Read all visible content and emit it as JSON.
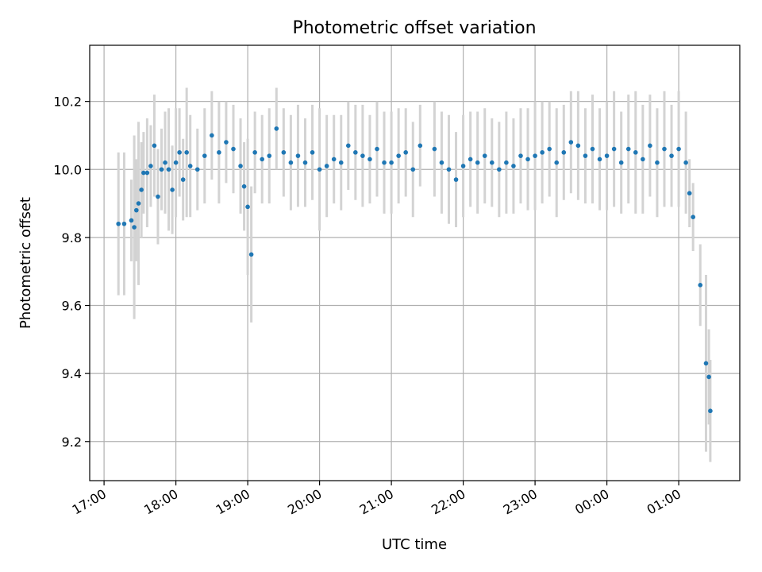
{
  "chart_data": {
    "type": "scatter",
    "title": "Photometric offset variation",
    "xlabel": "UTC time",
    "ylabel": "Photometric offset",
    "x_ticks": [
      "17:00",
      "18:00",
      "19:00",
      "20:00",
      "21:00",
      "22:00",
      "23:00",
      "00:00",
      "01:00"
    ],
    "y_ticks": [
      "9.2",
      "9.4",
      "9.6",
      "9.8",
      "10.0",
      "10.2"
    ],
    "xlim_hours": [
      16.8,
      25.85
    ],
    "ylim": [
      9.085,
      10.365
    ],
    "grid": true,
    "colors": {
      "point": "#1f77b4",
      "errorbar": "#d3d3d3"
    },
    "series": [
      {
        "x_hours": [
          17.2,
          17.28,
          17.38,
          17.42,
          17.45,
          17.48,
          17.52,
          17.55,
          17.6,
          17.65,
          17.7,
          17.75,
          17.8,
          17.85,
          17.9,
          17.95,
          18.0,
          18.05,
          18.1,
          18.15,
          18.2,
          18.3,
          18.4,
          18.5,
          18.6,
          18.7,
          18.8,
          18.9,
          18.95,
          19.0,
          19.05,
          19.1,
          19.2,
          19.3,
          19.4,
          19.5,
          19.6,
          19.7,
          19.8,
          19.9,
          20.0,
          20.1,
          20.2,
          20.3,
          20.4,
          20.5,
          20.6,
          20.7,
          20.8,
          20.9,
          21.0,
          21.1,
          21.2,
          21.3,
          21.4,
          21.6,
          21.7,
          21.8,
          21.9,
          22.0,
          22.1,
          22.2,
          22.3,
          22.4,
          22.5,
          22.6,
          22.7,
          22.8,
          22.9,
          23.0,
          23.1,
          23.2,
          23.3,
          23.4,
          23.5,
          23.6,
          23.7,
          23.8,
          23.9,
          24.0,
          24.1,
          24.2,
          24.3,
          24.4,
          24.5,
          24.6,
          24.7,
          24.8,
          24.9,
          25.0,
          25.1,
          25.15,
          25.2,
          25.3,
          25.38,
          25.42,
          25.44
        ],
        "y": [
          9.84,
          9.84,
          9.85,
          9.83,
          9.88,
          9.9,
          9.94,
          9.99,
          9.99,
          10.01,
          10.07,
          9.92,
          10.0,
          10.02,
          10.0,
          9.94,
          10.02,
          10.05,
          9.97,
          10.05,
          10.01,
          10.0,
          10.04,
          10.1,
          10.05,
          10.08,
          10.06,
          10.01,
          9.95,
          9.89,
          9.75,
          10.05,
          10.03,
          10.04,
          10.12,
          10.05,
          10.02,
          10.04,
          10.02,
          10.05,
          10.0,
          10.01,
          10.03,
          10.02,
          10.07,
          10.05,
          10.04,
          10.03,
          10.06,
          10.02,
          10.02,
          10.04,
          10.05,
          10.0,
          10.07,
          10.06,
          10.02,
          10.0,
          9.97,
          10.01,
          10.03,
          10.02,
          10.04,
          10.02,
          10.0,
          10.02,
          10.01,
          10.04,
          10.03,
          10.04,
          10.05,
          10.06,
          10.02,
          10.05,
          10.08,
          10.07,
          10.04,
          10.06,
          10.03,
          10.04,
          10.06,
          10.02,
          10.06,
          10.05,
          10.03,
          10.07,
          10.02,
          10.06,
          10.04,
          10.06,
          10.02,
          9.93,
          9.86,
          9.66,
          9.43,
          9.39,
          9.29
        ],
        "err": [
          0.21,
          0.21,
          0.12,
          0.27,
          0.15,
          0.24,
          0.14,
          0.12,
          0.16,
          0.12,
          0.15,
          0.14,
          0.12,
          0.15,
          0.18,
          0.13,
          0.16,
          0.13,
          0.12,
          0.19,
          0.15,
          0.12,
          0.14,
          0.13,
          0.15,
          0.12,
          0.13,
          0.14,
          0.13,
          0.2,
          0.2,
          0.12,
          0.13,
          0.14,
          0.12,
          0.13,
          0.14,
          0.15,
          0.13,
          0.14,
          0.18,
          0.15,
          0.13,
          0.14,
          0.13,
          0.14,
          0.15,
          0.13,
          0.14,
          0.15,
          0.15,
          0.14,
          0.13,
          0.14,
          0.12,
          0.14,
          0.15,
          0.16,
          0.14,
          0.15,
          0.14,
          0.15,
          0.14,
          0.13,
          0.14,
          0.15,
          0.14,
          0.14,
          0.15,
          0.16,
          0.15,
          0.14,
          0.16,
          0.14,
          0.15,
          0.16,
          0.14,
          0.16,
          0.15,
          0.16,
          0.17,
          0.15,
          0.16,
          0.18,
          0.16,
          0.15,
          0.16,
          0.17,
          0.15,
          0.17,
          0.15,
          0.1,
          0.1,
          0.12,
          0.26,
          0.14,
          0.15
        ]
      }
    ]
  }
}
